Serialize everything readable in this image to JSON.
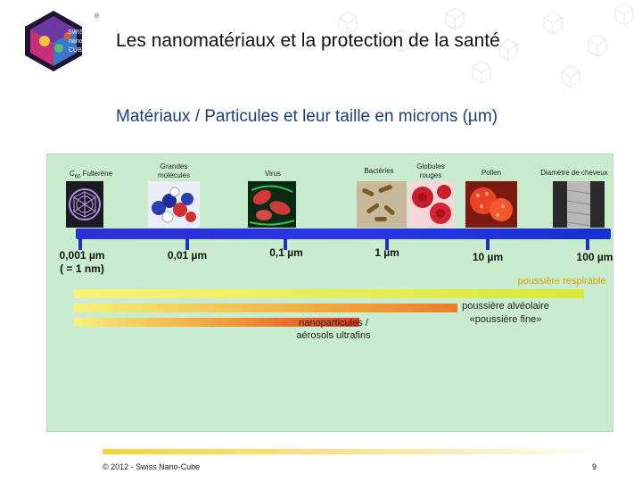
{
  "header": {
    "title": "Les nanomatériaux et la protection de la santé",
    "subtitle": "Matériaux / Particules et leur taille en microns (µm)",
    "logo": {
      "line1": "SWISS",
      "line2": "nano",
      "line3": "CUBE",
      "mark": "®"
    }
  },
  "materials": [
    {
      "label_html_main": "C",
      "sub": "60",
      "label_rest": " Fullerène",
      "image": "fullerene-cage-icon"
    },
    {
      "label": "Grandes molécules",
      "image": "molecule-model-icon"
    },
    {
      "label": "Virus",
      "image": "virus-micrograph-icon"
    },
    {
      "label": "Bactéries",
      "image": "bacteria-micrograph-icon"
    },
    {
      "label": "Globules rouges",
      "image": "red-blood-cells-icon"
    },
    {
      "label": "Pollen",
      "image": "pollen-grain-icon"
    },
    {
      "label": "Diamètre de cheveux",
      "image": "hair-fiber-icon"
    }
  ],
  "scale": [
    {
      "value": "0,001 µm",
      "note": "( = 1 nm)"
    },
    {
      "value": "0,01 µm"
    },
    {
      "value": "0,1 µm"
    },
    {
      "value": "1 µm"
    },
    {
      "value": "10 µm"
    },
    {
      "value": "100 µm"
    }
  ],
  "ranges": {
    "respirable": "poussière respirable",
    "alveolar_line1": "poussière alvéolaire",
    "alveolar_line2": "«poussière fine»",
    "nano_line1": "nanoparticules /",
    "nano_line2": "aérosols ultrafins"
  },
  "colors": {
    "scale_bar": "#2a2fd0",
    "panel": "#c9ecce",
    "respirable_bar_start": "#f8f27a",
    "respirable_bar_end": "#d8e93a",
    "alveolar_bar_start": "#f7f07a",
    "alveolar_bar_end": "#ec7d2a",
    "nano_bar_start": "#f7f07a",
    "nano_bar_end": "#e23a1e",
    "accent_title": "#1d3e7a"
  },
  "footer": {
    "copyright": "© 2012 - Swiss Nano-Cube",
    "page": "9"
  }
}
